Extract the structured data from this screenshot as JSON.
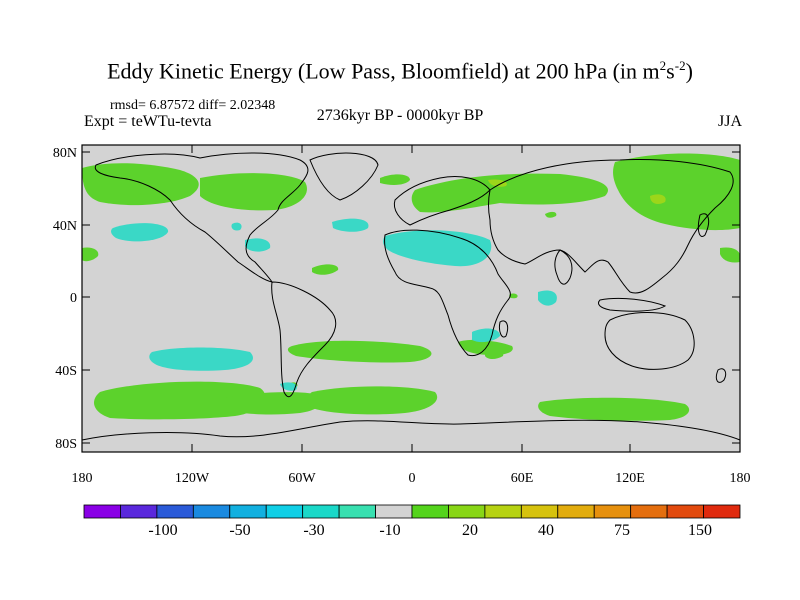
{
  "title": {
    "main": "Eddy Kinetic Energy (Low Pass, Bloomfield) at 200 hPa (in m",
    "unit_sup1": "2",
    "unit_mid": "s",
    "unit_sup2": "-2",
    "unit_end": ")"
  },
  "stats": "rmsd= 6.87572 diff= 2.02348",
  "expt": "Expt = teWTu-tevta",
  "period": "2736kyr BP - 0000kyr BP",
  "season": "JJA",
  "map": {
    "background_color": "#d3d3d3",
    "lat_ticks": [
      "80N",
      "40N",
      "0",
      "40S",
      "80S"
    ],
    "lon_ticks": [
      "180",
      "120W",
      "60W",
      "0",
      "60E",
      "120E",
      "180"
    ]
  },
  "colorbar": {
    "colors": [
      "#8a00e6",
      "#5a28dc",
      "#2a5ad8",
      "#1a8ae0",
      "#12b0e0",
      "#10cfe6",
      "#1ad8c8",
      "#38e0b0",
      "#d3d3d3",
      "#54d41c",
      "#88d616",
      "#b6d212",
      "#d6c20e",
      "#e2ac0e",
      "#e6900e",
      "#e46e0e",
      "#e24a0e",
      "#e02a0e"
    ],
    "labels": [
      "-100",
      "-50",
      "-30",
      "-10",
      "20",
      "40",
      "75",
      "150"
    ]
  },
  "legend_colors": {
    "positive_small": "#5cd22c",
    "positive_mid": "#9cd61a",
    "negative_small": "#3ad8c6"
  }
}
